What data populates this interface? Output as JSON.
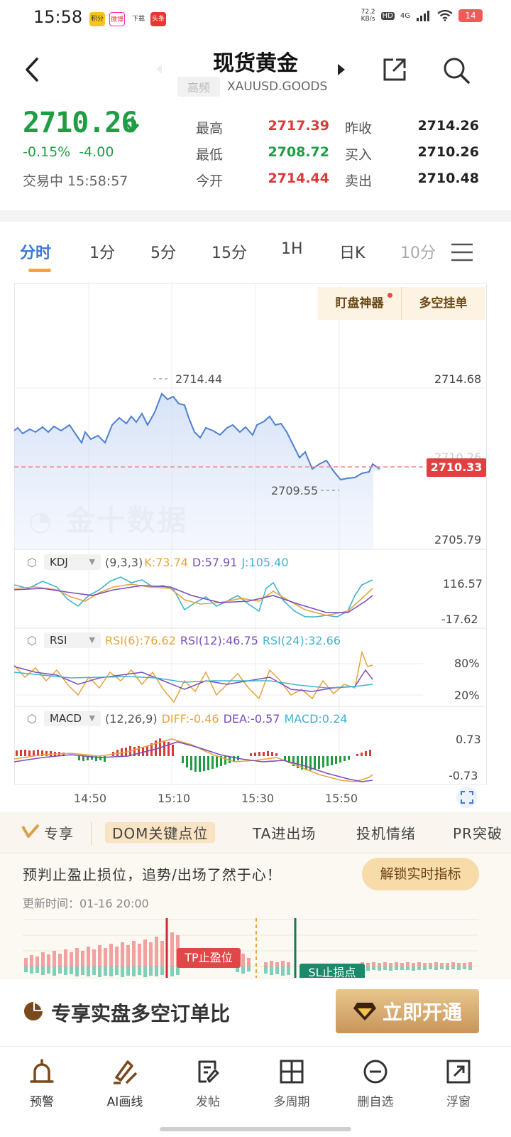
{
  "status_bar": {
    "time": "15:58",
    "net_speed": "72.2\nKB/s",
    "hd": "HD",
    "signal": "4G",
    "battery": "14",
    "apps": [
      "积分",
      "微博",
      "下载",
      "头条"
    ]
  },
  "header": {
    "title": "现货黄金",
    "hf_tag": "高频",
    "code": "XAUUSD.GOODS"
  },
  "quote": {
    "price": "2710.26",
    "change_pct": "-0.15%",
    "change_abs": "-4.00",
    "status_text": "交易中 15:58:57",
    "stats": [
      {
        "label": "最高",
        "value": "2717.39",
        "color": "red"
      },
      {
        "label": "最低",
        "value": "2708.72",
        "color": "green"
      },
      {
        "label": "今开",
        "value": "2714.44",
        "color": "red"
      },
      {
        "label": "昨收",
        "value": "2714.26",
        "color": "dark"
      },
      {
        "label": "买入",
        "value": "2710.26",
        "color": "dark"
      },
      {
        "label": "卖出",
        "value": "2710.48",
        "color": "dark"
      }
    ]
  },
  "tabs": [
    "分时",
    "1分",
    "5分",
    "15分",
    "1H",
    "日K",
    "10分"
  ],
  "chart_tools": {
    "watch": "盯盘神器",
    "orders": "多空挂单"
  },
  "main_chart": {
    "y_top": "2714.68",
    "y_bottom": "2705.79",
    "current": "2710.33",
    "hidden_label": "2710.26",
    "high_label": "2714.44",
    "low_label": "2709.55",
    "watermark": "金十数据"
  },
  "kdj": {
    "name": "KDJ",
    "params": "(9,3,3)",
    "k": "K:73.74",
    "d": "D:57.91",
    "j": "J:105.40",
    "y_top": "116.57",
    "y_bottom": "-17.62"
  },
  "rsi": {
    "name": "RSI",
    "r6": "RSI(6):76.62",
    "r12": "RSI(12):46.75",
    "r24": "RSI(24):32.66",
    "y_top": "80%",
    "y_bottom": "20%"
  },
  "macd": {
    "name": "MACD",
    "params": "(12,26,9)",
    "diff": "DIFF:-0.46",
    "dea": "DEA:-0.57",
    "macd": "MACD:0.24",
    "y_top": "0.73",
    "y_bottom": "-0.73"
  },
  "time_axis": [
    "14:50",
    "15:10",
    "15:30",
    "15:50"
  ],
  "promo": {
    "tabs": [
      "专享",
      "DOM关键点位",
      "TA进出场",
      "投机情绪",
      "PR突破"
    ],
    "text": "预判止盈止损位，追势/出场了然于心！",
    "unlock": "解锁实时指标",
    "update_time": "更新时间：01-16 20:00",
    "tp_label": "TP止盈位",
    "sl_label": "SL止损点"
  },
  "vip": {
    "text": "专享实盘多空订单比",
    "button": "立即开通"
  },
  "nav": [
    "预警",
    "AI画线",
    "发帖",
    "多周期",
    "删自选",
    "浮窗"
  ],
  "colors": {
    "up": "#d93a3a",
    "down": "#1f9d43",
    "accent": "#3a78d8",
    "gold": "#c7955a"
  }
}
